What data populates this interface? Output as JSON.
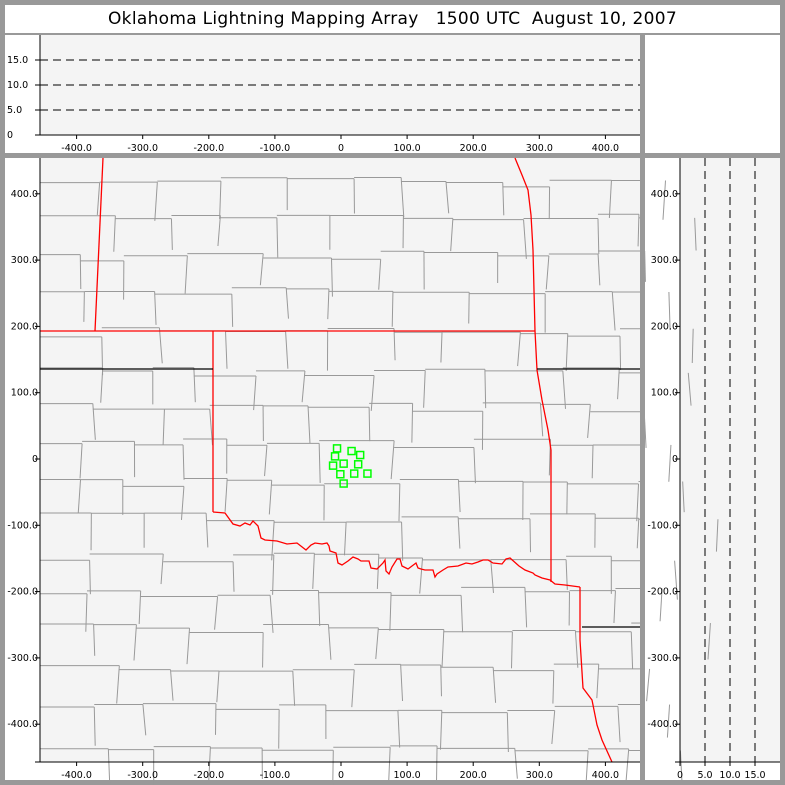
{
  "title": {
    "name": "Oklahoma Lightning Mapping Array",
    "time": "1500 UTC",
    "date": "August 10, 2007"
  },
  "colors": {
    "frame": "#999999",
    "plot_background": "#f4f4f4",
    "county_lines": "#999999",
    "state_border_ok": "#ff0000",
    "state_border_other": "#000000",
    "source_markers": "#00ff00"
  },
  "chart_data": [
    {
      "panel": "east-west-height",
      "type": "scatter",
      "x_tick_labels": [
        "-400.0",
        "-300.0",
        "-200.0",
        "-100.0",
        "0",
        "100.0",
        "200.0",
        "300.0",
        "400.0"
      ],
      "x_ticks": [
        -400,
        -300,
        -200,
        -100,
        0,
        100,
        200,
        300,
        400
      ],
      "xlim": [
        -450,
        450
      ],
      "y_tick_labels": [
        "0",
        "5.0",
        "10.0",
        "15.0"
      ],
      "y_ticks": [
        0,
        5,
        10,
        15
      ],
      "ylim": [
        0,
        20
      ],
      "grid": "dashed horizontal at 5, 10, 15",
      "points": []
    },
    {
      "panel": "plan-view-map",
      "type": "scatter",
      "x_tick_labels": [
        "-400.0",
        "-300.0",
        "-200.0",
        "-100.0",
        "0",
        "100.0",
        "200.0",
        "300.0",
        "400.0"
      ],
      "x_ticks": [
        -400,
        -300,
        -200,
        -100,
        0,
        100,
        200,
        300,
        400
      ],
      "xlim": [
        -450,
        450
      ],
      "y_tick_labels": [
        "400.0",
        "300.0",
        "200.0",
        "100.0",
        "0",
        "-100.0",
        "-200.0",
        "-300.0",
        "-400.0"
      ],
      "y_ticks": [
        400,
        300,
        200,
        100,
        0,
        -100,
        -200,
        -300,
        -400
      ],
      "ylim": [
        -450,
        450
      ],
      "marker": "hollow square",
      "points": [
        {
          "x": -6,
          "y": 16
        },
        {
          "x": 16,
          "y": 12
        },
        {
          "x": 29,
          "y": 6
        },
        {
          "x": -9,
          "y": 4
        },
        {
          "x": 4,
          "y": -7
        },
        {
          "x": 26,
          "y": -8
        },
        {
          "x": -12,
          "y": -10
        },
        {
          "x": -1,
          "y": -23
        },
        {
          "x": 20,
          "y": -22
        },
        {
          "x": 40,
          "y": -22
        },
        {
          "x": 4,
          "y": -37
        }
      ]
    },
    {
      "panel": "height-north-south",
      "type": "scatter",
      "x_tick_labels": [
        "0",
        "5.0",
        "10.0",
        "15.0"
      ],
      "x_ticks": [
        0,
        5,
        10,
        15
      ],
      "xlim": [
        0,
        20
      ],
      "y_tick_labels": [
        "400.0",
        "300.0",
        "200.0",
        "100.0",
        "0",
        "-100.0",
        "-200.0",
        "-300.0",
        "-400.0"
      ],
      "y_ticks": [
        400,
        300,
        200,
        100,
        0,
        -100,
        -200,
        -300,
        -400
      ],
      "ylim": [
        -450,
        450
      ],
      "grid": "dashed vertical at 5, 10, 15",
      "points": []
    }
  ]
}
